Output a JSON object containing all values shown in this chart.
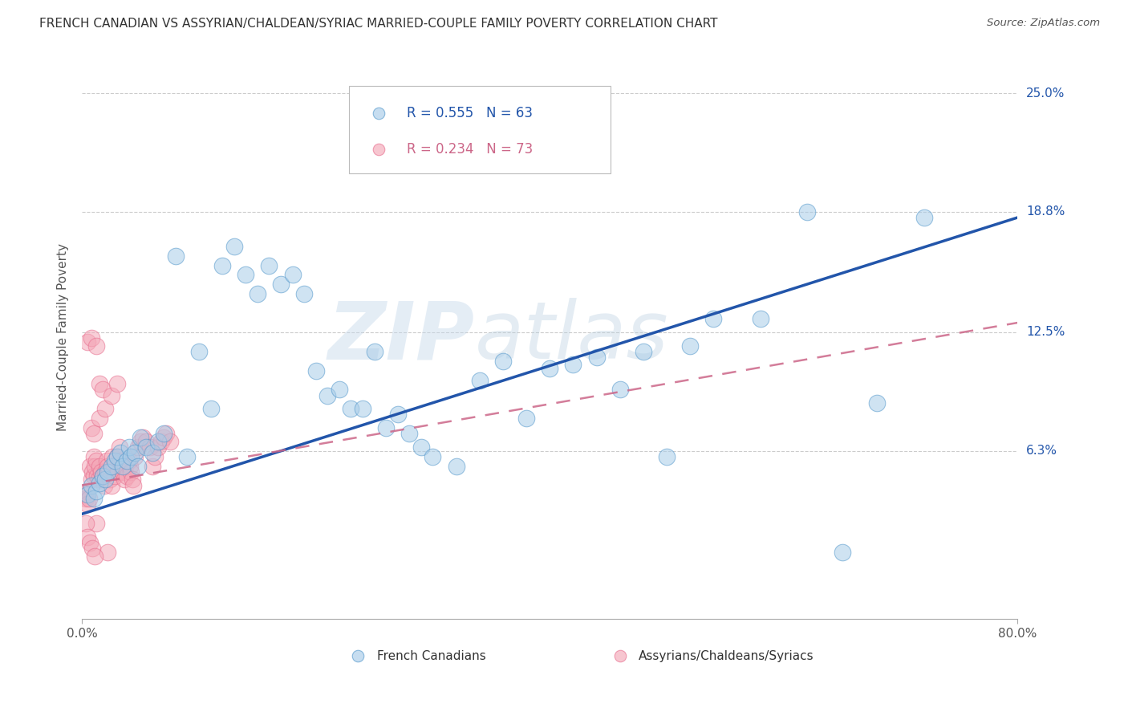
{
  "title": "FRENCH CANADIAN VS ASSYRIAN/CHALDEAN/SYRIAC MARRIED-COUPLE FAMILY POVERTY CORRELATION CHART",
  "source": "Source: ZipAtlas.com",
  "ylabel": "Married-Couple Family Poverty",
  "y_ticks": [
    0.0,
    0.063,
    0.125,
    0.188,
    0.25
  ],
  "y_tick_labels": [
    "",
    "6.3%",
    "12.5%",
    "18.8%",
    "25.0%"
  ],
  "xlim": [
    0.0,
    0.8
  ],
  "ylim": [
    -0.025,
    0.27
  ],
  "legend1_R": "0.555",
  "legend1_N": "63",
  "legend2_R": "0.234",
  "legend2_N": "73",
  "legend1_label": "French Canadians",
  "legend2_label": "Assyrians/Chaldeans/Syriacs",
  "blue_color": "#a8cce8",
  "pink_color": "#f4a8b8",
  "blue_edge_color": "#5599cc",
  "pink_edge_color": "#e87090",
  "blue_line_color": "#2255aa",
  "pink_line_color": "#cc6688",
  "watermark_zip": "ZIP",
  "watermark_atlas": "atlas",
  "blue_scatter_x": [
    0.005,
    0.008,
    0.01,
    0.012,
    0.015,
    0.018,
    0.02,
    0.022,
    0.025,
    0.028,
    0.03,
    0.033,
    0.035,
    0.038,
    0.04,
    0.042,
    0.045,
    0.048,
    0.05,
    0.055,
    0.06,
    0.065,
    0.07,
    0.08,
    0.09,
    0.1,
    0.11,
    0.12,
    0.13,
    0.14,
    0.15,
    0.16,
    0.17,
    0.18,
    0.19,
    0.2,
    0.21,
    0.22,
    0.23,
    0.24,
    0.25,
    0.26,
    0.27,
    0.28,
    0.29,
    0.3,
    0.32,
    0.34,
    0.36,
    0.38,
    0.4,
    0.42,
    0.44,
    0.46,
    0.48,
    0.5,
    0.52,
    0.54,
    0.58,
    0.62,
    0.65,
    0.68,
    0.72
  ],
  "blue_scatter_y": [
    0.04,
    0.045,
    0.038,
    0.042,
    0.046,
    0.05,
    0.048,
    0.052,
    0.055,
    0.058,
    0.06,
    0.062,
    0.055,
    0.058,
    0.065,
    0.06,
    0.062,
    0.055,
    0.07,
    0.065,
    0.062,
    0.068,
    0.072,
    0.165,
    0.06,
    0.115,
    0.085,
    0.16,
    0.17,
    0.155,
    0.145,
    0.16,
    0.15,
    0.155,
    0.145,
    0.105,
    0.092,
    0.095,
    0.085,
    0.085,
    0.115,
    0.075,
    0.082,
    0.072,
    0.065,
    0.06,
    0.055,
    0.1,
    0.11,
    0.08,
    0.106,
    0.108,
    0.112,
    0.095,
    0.115,
    0.06,
    0.118,
    0.132,
    0.132,
    0.188,
    0.01,
    0.088,
    0.185
  ],
  "pink_scatter_x": [
    0.002,
    0.003,
    0.004,
    0.005,
    0.006,
    0.007,
    0.008,
    0.009,
    0.01,
    0.01,
    0.011,
    0.012,
    0.013,
    0.014,
    0.015,
    0.016,
    0.017,
    0.018,
    0.019,
    0.02,
    0.021,
    0.022,
    0.023,
    0.024,
    0.025,
    0.026,
    0.027,
    0.028,
    0.03,
    0.031,
    0.032,
    0.033,
    0.034,
    0.035,
    0.036,
    0.037,
    0.038,
    0.04,
    0.041,
    0.042,
    0.043,
    0.044,
    0.045,
    0.048,
    0.05,
    0.052,
    0.055,
    0.058,
    0.06,
    0.062,
    0.065,
    0.068,
    0.07,
    0.072,
    0.075,
    0.005,
    0.008,
    0.012,
    0.015,
    0.018,
    0.022,
    0.008,
    0.01,
    0.012,
    0.015,
    0.02,
    0.025,
    0.03,
    0.003,
    0.005,
    0.007,
    0.009,
    0.011
  ],
  "pink_scatter_y": [
    0.04,
    0.038,
    0.042,
    0.035,
    0.038,
    0.055,
    0.048,
    0.052,
    0.06,
    0.05,
    0.055,
    0.058,
    0.05,
    0.048,
    0.055,
    0.052,
    0.048,
    0.05,
    0.045,
    0.052,
    0.058,
    0.055,
    0.052,
    0.048,
    0.045,
    0.06,
    0.055,
    0.05,
    0.06,
    0.052,
    0.065,
    0.058,
    0.055,
    0.052,
    0.048,
    0.055,
    0.05,
    0.058,
    0.055,
    0.052,
    0.048,
    0.045,
    0.06,
    0.065,
    0.068,
    0.07,
    0.068,
    0.065,
    0.055,
    0.06,
    0.065,
    0.068,
    0.07,
    0.072,
    0.068,
    0.12,
    0.122,
    0.118,
    0.098,
    0.095,
    0.01,
    0.075,
    0.072,
    0.025,
    0.08,
    0.085,
    0.092,
    0.098,
    0.025,
    0.018,
    0.015,
    0.012,
    0.008
  ]
}
